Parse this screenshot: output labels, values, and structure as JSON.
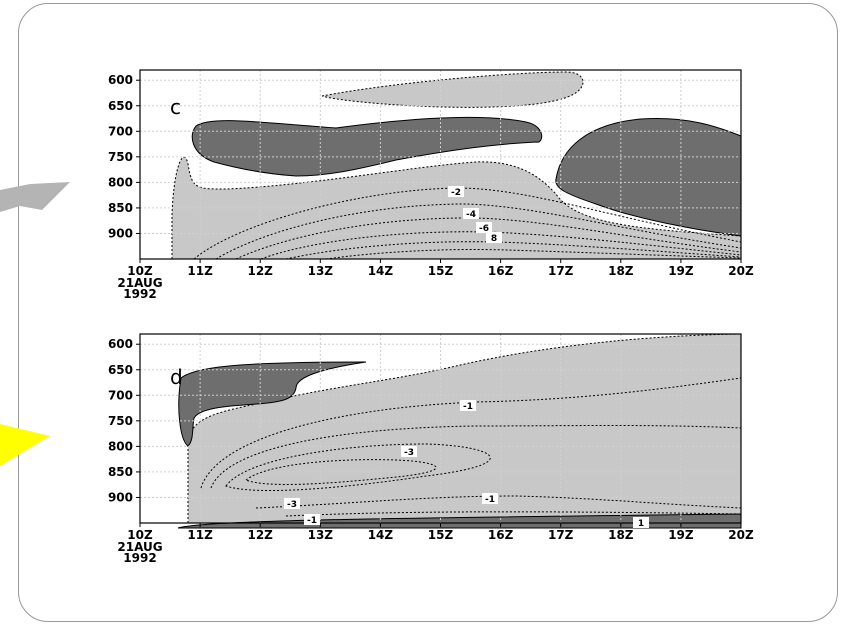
{
  "colors": {
    "light_shade": "#c8c8c8",
    "dark_shade": "#6e6e6e",
    "frame": "#9a9a9a",
    "grid": "#cfcfcf",
    "arrow_gray": "#b4b4b4",
    "arrow_yellow": "#ffff00"
  },
  "decorations": {
    "left_arrow_top": "gray-arrow-icon",
    "left_arrow_bottom": "yellow-arrow-icon"
  },
  "chart_data": [
    {
      "type": "contour",
      "panel_label": "c",
      "x": [
        "10Z",
        "11Z",
        "12Z",
        "13Z",
        "14Z",
        "15Z",
        "16Z",
        "17Z",
        "18Z",
        "19Z",
        "20Z"
      ],
      "x_first_sublabels": [
        "21AUG",
        "1992"
      ],
      "y": [
        600,
        650,
        700,
        750,
        800,
        850,
        900
      ],
      "ylim": [
        950,
        580
      ],
      "y_inverted": true,
      "grid": true,
      "contour_labels": [
        "-2",
        "-4",
        "-6",
        "8"
      ]
    },
    {
      "type": "contour",
      "panel_label": "d",
      "x": [
        "10Z",
        "11Z",
        "12Z",
        "13Z",
        "14Z",
        "15Z",
        "16Z",
        "17Z",
        "18Z",
        "19Z",
        "20Z"
      ],
      "x_first_sublabels": [
        "21AUG",
        "1992"
      ],
      "y": [
        600,
        650,
        700,
        750,
        800,
        850,
        900
      ],
      "ylim": [
        950,
        580
      ],
      "y_inverted": true,
      "grid": true,
      "contour_labels": [
        "-1",
        "-3",
        "-3",
        "-1",
        "-1",
        "1"
      ]
    }
  ]
}
